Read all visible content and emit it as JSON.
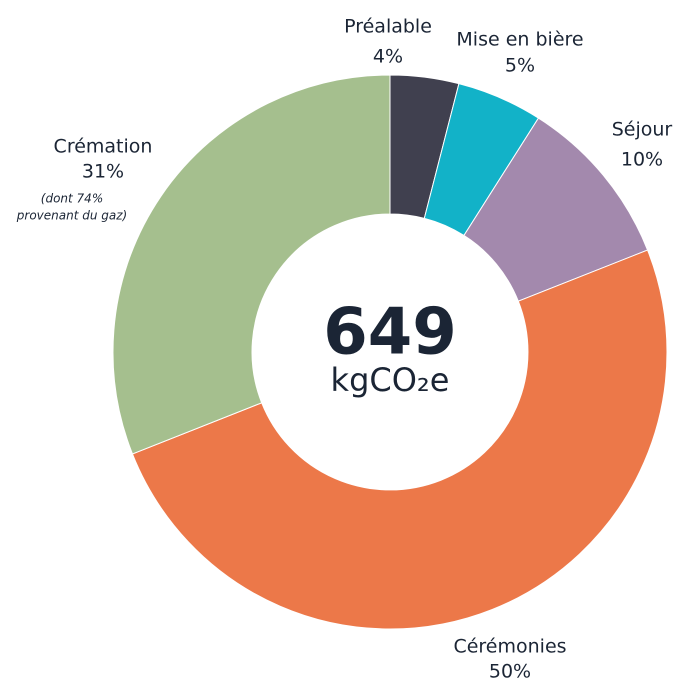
{
  "chart_data": {
    "type": "donut",
    "categories": [
      "Préalable",
      "Mise en bière",
      "Séjour",
      "Cérémonies",
      "Crémation"
    ],
    "values": [
      4,
      5,
      10,
      50,
      31
    ],
    "value_labels": [
      "4%",
      "5%",
      "10%",
      "50%",
      "31%"
    ],
    "colors": [
      "#40404f",
      "#12b2c8",
      "#a389ad",
      "#ec7849",
      "#a5bf8e"
    ],
    "center_value": 649,
    "center_unit": "kgCO₂e",
    "annotation": [
      "(dont 74%",
      "provenant du gaz)"
    ]
  }
}
